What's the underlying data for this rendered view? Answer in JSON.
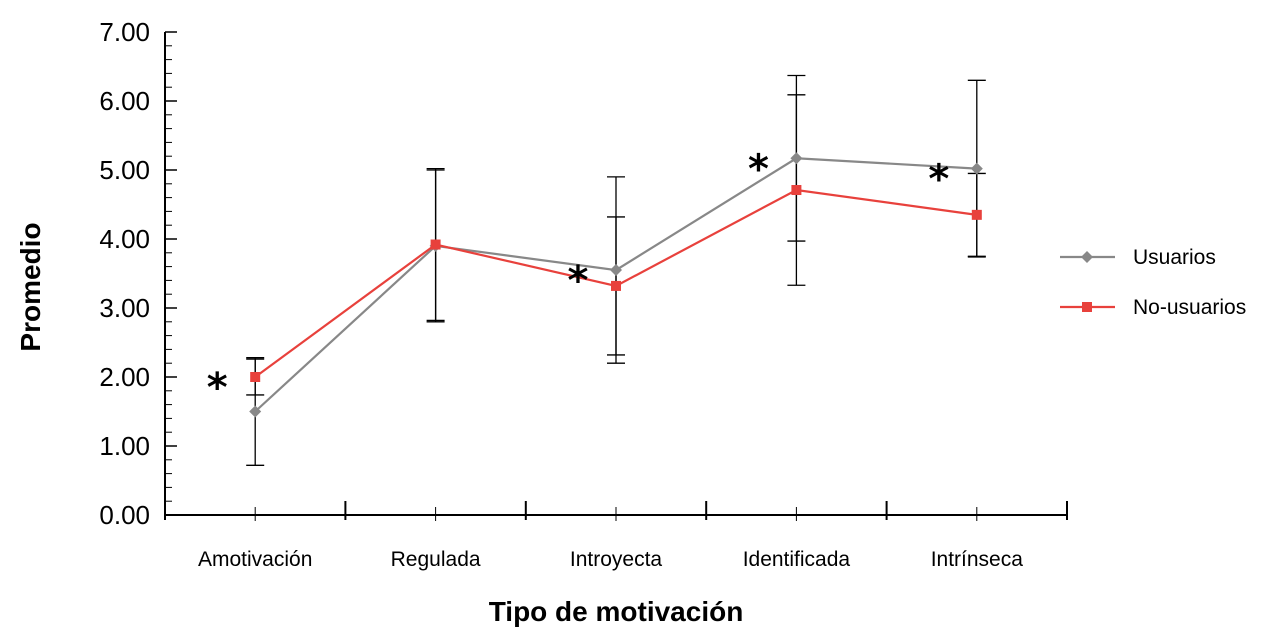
{
  "chart_data": {
    "type": "line",
    "title": "",
    "xlabel": "Tipo de motivación",
    "ylabel": "Promedio",
    "ylim": [
      0,
      7
    ],
    "yticks": [
      "0.00",
      "1.00",
      "2.00",
      "3.00",
      "4.00",
      "5.00",
      "6.00",
      "7.00"
    ],
    "categories": [
      "Amotivación",
      "Regulada",
      "Introyecta",
      "Identificada",
      "Intrínseca"
    ],
    "legend_position": "right",
    "grid": false,
    "significance_marker": "*",
    "significant": [
      true,
      false,
      true,
      true,
      true
    ],
    "series": [
      {
        "name": "Usuarios",
        "color": "#888888",
        "marker": "diamond",
        "values": [
          1.5,
          3.9,
          3.55,
          5.17,
          5.02
        ],
        "error": [
          0.78,
          1.1,
          1.35,
          1.2,
          1.28
        ]
      },
      {
        "name": "No-usuarios",
        "color": "#e8413c",
        "marker": "square",
        "values": [
          2.0,
          3.92,
          3.32,
          4.71,
          4.35
        ],
        "error": [
          0.26,
          1.1,
          1.0,
          1.38,
          0.6
        ]
      }
    ]
  }
}
